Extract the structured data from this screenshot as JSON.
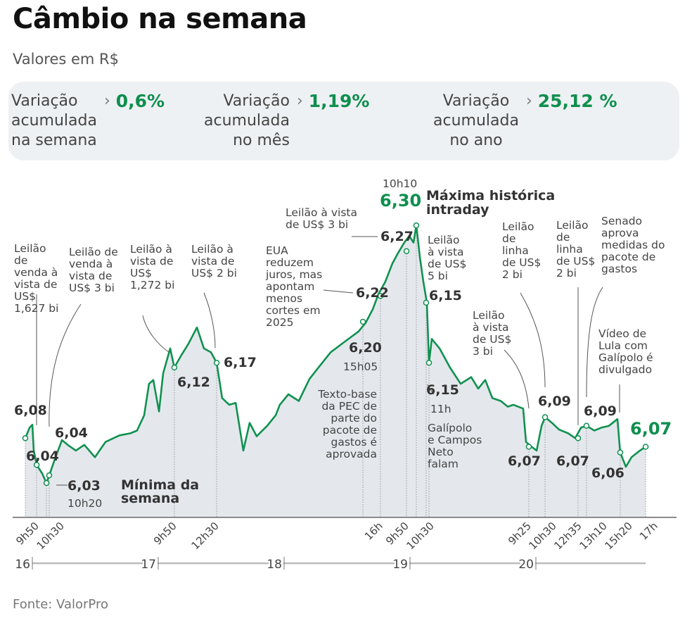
{
  "header": {
    "title": "Câmbio na semana",
    "subtitle": "Valores em R$"
  },
  "summary": [
    {
      "label": "Variação\nacumulada\nna semana",
      "value": "0,6%"
    },
    {
      "label": "Variação\nacumulada\nno mês",
      "value": "1,19%"
    },
    {
      "label": "Variação\nacumulada\nno ano",
      "value": "25,12 %"
    }
  ],
  "colors": {
    "line": "#119150",
    "area": "#e4e8ed",
    "accent": "#0e8f4e",
    "summary_bg": "#eef1f4"
  },
  "chart_data": {
    "type": "area",
    "title": "",
    "xlabel": "",
    "ylabel": "",
    "grid": false,
    "ylim": [
      5.994,
      6.3
    ],
    "xlim": [
      15.94,
      20.88
    ],
    "days": [
      "16",
      "17",
      "18",
      "19",
      "20"
    ],
    "time_ticks": [
      {
        "label": "9h50",
        "x": 16.034
      },
      {
        "label": "10h30",
        "x": 16.134
      },
      {
        "label": "9h50",
        "x": 17.128
      },
      {
        "label": "12h30",
        "x": 17.464
      },
      {
        "label": "16h",
        "x": 18.765
      },
      {
        "label": "9h50",
        "x": 18.972
      },
      {
        "label": "10h30",
        "x": 19.128
      },
      {
        "label": "9h25",
        "x": 19.944
      },
      {
        "label": "10h30",
        "x": 20.073
      },
      {
        "label": "12h35",
        "x": 20.335
      },
      {
        "label": "13h10",
        "x": 20.402
      },
      {
        "label": "15h20",
        "x": 20.67
      },
      {
        "label": "17h",
        "x": 20.872
      }
    ],
    "series": [
      {
        "x": [
          15.944,
          15.978,
          16.0,
          16.011,
          16.034,
          16.078,
          16.112,
          16.134,
          16.179,
          16.235,
          16.291,
          16.346,
          16.413,
          16.497,
          16.581,
          16.693,
          16.777,
          16.832,
          16.888,
          16.927,
          16.961,
          17.006,
          17.039,
          17.095,
          17.128,
          17.184,
          17.24,
          17.307,
          17.363,
          17.419,
          17.464,
          17.508,
          17.564,
          17.615,
          17.676,
          17.726,
          17.782,
          17.866,
          17.933,
          17.966,
          18.034,
          18.117,
          18.201,
          18.285,
          18.369,
          18.48,
          18.592,
          18.648,
          18.704,
          18.749,
          18.804,
          18.86,
          18.905,
          18.955,
          18.994,
          19.028,
          19.05,
          19.078,
          19.106,
          19.134,
          19.151,
          19.173,
          19.235,
          19.318,
          19.402,
          19.486,
          19.542,
          19.598,
          19.654,
          19.721,
          19.777,
          19.821,
          19.899,
          19.922,
          19.966,
          20.006,
          20.045,
          20.073,
          20.128,
          20.184,
          20.257,
          20.313,
          20.358,
          20.402,
          20.464,
          20.52,
          20.581,
          20.648,
          20.67,
          20.715,
          20.76,
          20.827,
          20.872
        ],
        "y": [
          6.077,
          6.088,
          6.091,
          6.064,
          6.049,
          6.04,
          6.03,
          6.038,
          6.055,
          6.075,
          6.069,
          6.064,
          6.07,
          6.057,
          6.073,
          6.08,
          6.082,
          6.085,
          6.101,
          6.134,
          6.138,
          6.105,
          6.145,
          6.171,
          6.151,
          6.164,
          6.176,
          6.193,
          6.171,
          6.167,
          6.156,
          6.119,
          6.112,
          6.114,
          6.064,
          6.093,
          6.079,
          6.09,
          6.101,
          6.112,
          6.123,
          6.116,
          6.139,
          6.153,
          6.167,
          6.178,
          6.189,
          6.198,
          6.212,
          6.228,
          6.241,
          6.26,
          6.271,
          6.282,
          6.289,
          6.282,
          6.3,
          6.267,
          6.241,
          6.219,
          6.156,
          6.181,
          6.171,
          6.151,
          6.134,
          6.141,
          6.129,
          6.138,
          6.119,
          6.116,
          6.11,
          6.112,
          6.108,
          6.073,
          6.068,
          6.064,
          6.09,
          6.099,
          6.093,
          6.086,
          6.082,
          6.077,
          6.088,
          6.09,
          6.085,
          6.088,
          6.09,
          6.097,
          6.062,
          6.047,
          6.057,
          6.064,
          6.068
        ]
      }
    ],
    "markers": [
      {
        "x": 15.944,
        "y": 6.077
      },
      {
        "x": 16.034,
        "y": 6.049
      },
      {
        "x": 16.112,
        "y": 6.03
      },
      {
        "x": 16.134,
        "y": 6.038
      },
      {
        "x": 17.128,
        "y": 6.151
      },
      {
        "x": 17.464,
        "y": 6.156
      },
      {
        "x": 18.626,
        "y": 6.199
      },
      {
        "x": 18.765,
        "y": 6.226
      },
      {
        "x": 18.972,
        "y": 6.273
      },
      {
        "x": 19.05,
        "y": 6.3
      },
      {
        "x": 19.128,
        "y": 6.219
      },
      {
        "x": 19.151,
        "y": 6.156
      },
      {
        "x": 19.944,
        "y": 6.068
      },
      {
        "x": 20.073,
        "y": 6.099
      },
      {
        "x": 20.335,
        "y": 6.077
      },
      {
        "x": 20.402,
        "y": 6.09
      },
      {
        "x": 20.67,
        "y": 6.062
      },
      {
        "x": 20.872,
        "y": 6.068
      }
    ],
    "value_labels": {
      "v608": "6,08",
      "v604a": "6,04",
      "v604b": "6,04",
      "v603": "6,03",
      "t1020": "10h20",
      "minima": "Mínima da\nsemana",
      "v612": "6,12",
      "v617": "6,17",
      "v620": "6,20",
      "t1505": "15h05",
      "v622": "6,22",
      "v627": "6,27",
      "t1010": "10h10",
      "v630": "6,30",
      "maxima": "Máxima histórica\nintraday",
      "v615a": "6,15",
      "v615b": "6,15",
      "t11": "11h",
      "v607a": "6,07",
      "v609a": "6,09",
      "v607b": "6,07",
      "v609b": "6,09",
      "v606": "6,06",
      "v607end": "6,07"
    },
    "annotations": {
      "a1": "Leilão\nde\nvenda à\nvista de\nUS$\n1,627 bi",
      "a2": "Leilão de\nvenda à\nvista de\nUS$ 3 bi",
      "a3": "Leilão à\nvista de\nUS$\n1,272 bi",
      "a4": "Leilão à\nvista de\nUS$ 2 bi",
      "a5": "EUA\nreduzem\njuros, mas\napontam\nmenos\ncortes em\n2025",
      "a6": "Leilão à vista\nde US$ 3 bi",
      "a8": "Leilão\nà vista\nde US$\n5 bi",
      "a9": "Texto-base\nda PEC de\nparte do\npacote de\ngastos é\naprovada",
      "a10": "Galípolo\ne Campos\nNeto\nfalam",
      "a11": "Leilão\nà vista\nde US$\n3 bi",
      "a12": "Leilão\nde\nlinha\nde US$\n2 bi",
      "a13": "Leilão\nde\nlinha\nde US$\n2 bi",
      "a14": "Senado\naprova\nmedidas do\npacote de\ngastos",
      "a15": "Vídeo de\nLula com\nGalípolo é\ndivulgado"
    }
  },
  "source": "Fonte: ValorPro"
}
